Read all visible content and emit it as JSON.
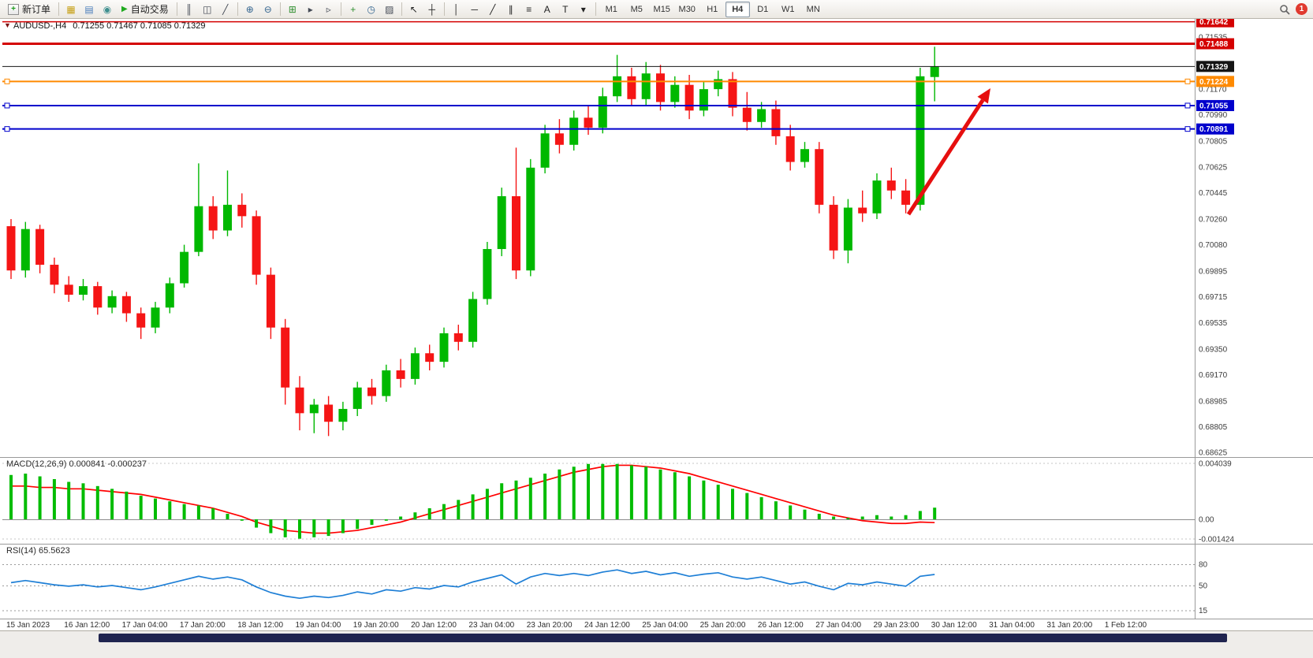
{
  "window": {
    "notification_badge": "1"
  },
  "colors": {
    "bull": "#00b800",
    "bear": "#f51515",
    "macd_histogram": "#00bc00",
    "macd_signal": "#ff0000",
    "rsi_line": "#1e7fd6",
    "arrow": "#e60f0f"
  },
  "toolbar": {
    "new_order": {
      "label": "新订单"
    },
    "autotrading": {
      "label": "自动交易"
    },
    "autotrading_icon": {
      "name": "autotrading-icon",
      "glyph": "▶",
      "color": "#1faa1f"
    },
    "icon_groups_a": [
      {
        "name": "charts-icon",
        "glyph": "▦",
        "color": "#c7a118"
      },
      {
        "name": "profiles-icon",
        "glyph": "▤",
        "color": "#4a7dbb"
      },
      {
        "name": "news-icon",
        "glyph": "◉",
        "color": "#3f8f8f"
      }
    ],
    "icon_groups_b": [
      [
        {
          "name": "bar-chart-icon",
          "glyph": "║",
          "color": "#444a55"
        },
        {
          "name": "candlestick-chart-icon",
          "glyph": "◫",
          "color": "#444a55"
        },
        {
          "name": "line-chart-icon",
          "glyph": "╱",
          "color": "#444a55"
        }
      ],
      [
        {
          "name": "zoom-in-icon",
          "glyph": "⊕",
          "color": "#33648f"
        },
        {
          "name": "zoom-out-icon",
          "glyph": "⊖",
          "color": "#33648f"
        }
      ],
      [
        {
          "name": "tile-windows-icon",
          "glyph": "⊞",
          "color": "#2f8f2f"
        },
        {
          "name": "auto-scroll-icon",
          "glyph": "▸",
          "color": "#444a55"
        },
        {
          "name": "chart-shift-icon",
          "glyph": "▹",
          "color": "#444a55"
        }
      ],
      [
        {
          "name": "add-indicator-icon",
          "glyph": "+",
          "color": "#2f8f2f"
        },
        {
          "name": "periods-icon",
          "glyph": "◷",
          "color": "#33648f"
        },
        {
          "name": "templates-icon",
          "glyph": "▨",
          "color": "#444a55"
        }
      ],
      [
        {
          "name": "cursor-icon",
          "glyph": "↖",
          "color": "#222222"
        },
        {
          "name": "crosshair-icon",
          "glyph": "┼",
          "color": "#222222"
        }
      ],
      [
        {
          "name": "vertical-line-icon",
          "glyph": "│",
          "color": "#222222"
        },
        {
          "name": "horizontal-line-icon",
          "glyph": "─",
          "color": "#222222"
        },
        {
          "name": "trendline-icon",
          "glyph": "╱",
          "color": "#222222"
        },
        {
          "name": "channel-icon",
          "glyph": "∥",
          "color": "#222222"
        },
        {
          "name": "fibonacci-icon",
          "glyph": "≡",
          "color": "#222222"
        },
        {
          "name": "text-icon",
          "glyph": "A",
          "color": "#222222"
        },
        {
          "name": "label-icon",
          "glyph": "T",
          "color": "#222222"
        },
        {
          "name": "shapes-icon",
          "glyph": "▾",
          "color": "#222222"
        }
      ]
    ],
    "timeframes": [
      "M1",
      "M5",
      "M15",
      "M30",
      "H1",
      "H4",
      "D1",
      "W1",
      "MN"
    ],
    "active_timeframe": "H4"
  },
  "chart": {
    "marker_glyph": "▼",
    "symbol_title": "AUDUSD-,H4",
    "ohlc_text": "0.71255 0.71467 0.71085 0.71329",
    "price_ticks": [
      "0.71535",
      "0.71170",
      "0.70990",
      "0.70805",
      "0.70625",
      "0.70445",
      "0.70260",
      "0.70080",
      "0.69895",
      "0.69715",
      "0.69535",
      "0.69350",
      "0.69170",
      "0.68985",
      "0.68805",
      "0.68625"
    ],
    "levels": [
      {
        "name": "resistance-upper",
        "price": 0.71642,
        "label": "0.71642",
        "color": "#d40000",
        "width": 1.4,
        "handles": false
      },
      {
        "name": "resistance-lower",
        "price": 0.71488,
        "label": "0.71488",
        "color": "#d40000",
        "width": 3,
        "handles": false
      },
      {
        "name": "current-price",
        "price": 0.71329,
        "label": "0.71329",
        "color": "#151515",
        "width": 1,
        "handles": false
      },
      {
        "name": "pivot-orange",
        "price": 0.71224,
        "label": "0.71224",
        "color": "#ff8a00",
        "width": 2,
        "handles": true
      },
      {
        "name": "support-upper",
        "price": 0.71055,
        "label": "0.71055",
        "color": "#0000cc",
        "width": 2,
        "handles": true
      },
      {
        "name": "support-lower",
        "price": 0.70891,
        "label": "0.70891",
        "color": "#0000cc",
        "width": 2,
        "handles": true
      }
    ],
    "time_labels": [
      "15 Jan 2023",
      "16 Jan 12:00",
      "17 Jan 04:00",
      "17 Jan 20:00",
      "18 Jan 12:00",
      "19 Jan 04:00",
      "19 Jan 20:00",
      "20 Jan 12:00",
      "23 Jan 04:00",
      "23 Jan 20:00",
      "24 Jan 12:00",
      "25 Jan 04:00",
      "25 Jan 20:00",
      "26 Jan 12:00",
      "27 Jan 04:00",
      "29 Jan 23:00",
      "30 Jan 12:00",
      "31 Jan 04:00",
      "31 Jan 20:00",
      "1 Feb 12:00"
    ]
  },
  "macd": {
    "label": "MACD(12,26,9) 0.000841 -0.000237",
    "ticks": [
      {
        "label": "0.004039",
        "value": 0.004039
      },
      {
        "label": "0.00",
        "value": 0
      },
      {
        "label": "-0.001424",
        "value": -0.001424
      }
    ]
  },
  "rsi": {
    "label": "RSI(14) 65.5623",
    "ticks": [
      {
        "label": "80",
        "value": 80
      },
      {
        "label": "50",
        "value": 50
      },
      {
        "label": "15",
        "value": 15
      }
    ]
  },
  "chart_data": {
    "type": "candlestick",
    "symbol": "AUDUSD",
    "timeframe": "H4",
    "current_bar": {
      "open": 0.71255,
      "high": 0.71467,
      "low": 0.71085,
      "close": 0.71329
    },
    "candles": [
      [
        0.7021,
        0.7026,
        0.6984,
        0.699
      ],
      [
        0.699,
        0.7024,
        0.6985,
        0.7019
      ],
      [
        0.7019,
        0.7022,
        0.6988,
        0.6994
      ],
      [
        0.6994,
        0.6999,
        0.6974,
        0.698
      ],
      [
        0.698,
        0.6986,
        0.6968,
        0.6973
      ],
      [
        0.6973,
        0.6984,
        0.6969,
        0.6979
      ],
      [
        0.6979,
        0.6982,
        0.6959,
        0.6964
      ],
      [
        0.6964,
        0.6976,
        0.696,
        0.6972
      ],
      [
        0.6972,
        0.6975,
        0.6954,
        0.696
      ],
      [
        0.696,
        0.6964,
        0.6942,
        0.695
      ],
      [
        0.695,
        0.6968,
        0.6946,
        0.6964
      ],
      [
        0.6964,
        0.6985,
        0.696,
        0.6981
      ],
      [
        0.6981,
        0.7008,
        0.6978,
        0.7003
      ],
      [
        0.7003,
        0.7065,
        0.7,
        0.7035
      ],
      [
        0.7035,
        0.7042,
        0.7012,
        0.7018
      ],
      [
        0.7018,
        0.706,
        0.7014,
        0.7036
      ],
      [
        0.7036,
        0.7044,
        0.702,
        0.7028
      ],
      [
        0.7028,
        0.7032,
        0.698,
        0.6987
      ],
      [
        0.6987,
        0.6992,
        0.6942,
        0.695
      ],
      [
        0.695,
        0.6956,
        0.6896,
        0.6908
      ],
      [
        0.6908,
        0.6916,
        0.6878,
        0.689
      ],
      [
        0.689,
        0.69,
        0.6876,
        0.6896
      ],
      [
        0.6896,
        0.6902,
        0.6874,
        0.6884
      ],
      [
        0.6884,
        0.6898,
        0.6878,
        0.6893
      ],
      [
        0.6893,
        0.6912,
        0.6888,
        0.6908
      ],
      [
        0.6908,
        0.6914,
        0.6896,
        0.6902
      ],
      [
        0.6902,
        0.6924,
        0.6898,
        0.692
      ],
      [
        0.692,
        0.6928,
        0.6908,
        0.6914
      ],
      [
        0.6914,
        0.6936,
        0.691,
        0.6932
      ],
      [
        0.6932,
        0.6938,
        0.692,
        0.6926
      ],
      [
        0.6926,
        0.695,
        0.6922,
        0.6946
      ],
      [
        0.6946,
        0.6952,
        0.6934,
        0.694
      ],
      [
        0.694,
        0.6975,
        0.6936,
        0.697
      ],
      [
        0.697,
        0.701,
        0.6966,
        0.7005
      ],
      [
        0.7005,
        0.7048,
        0.7,
        0.7042
      ],
      [
        0.7042,
        0.7076,
        0.6984,
        0.699
      ],
      [
        0.699,
        0.7068,
        0.6986,
        0.7062
      ],
      [
        0.7062,
        0.7092,
        0.7058,
        0.7086
      ],
      [
        0.7086,
        0.7096,
        0.7072,
        0.7078
      ],
      [
        0.7078,
        0.7102,
        0.7074,
        0.7097
      ],
      [
        0.7097,
        0.7105,
        0.7085,
        0.709
      ],
      [
        0.709,
        0.7118,
        0.7086,
        0.7112
      ],
      [
        0.7112,
        0.7141,
        0.7108,
        0.7126
      ],
      [
        0.7126,
        0.7132,
        0.7105,
        0.711
      ],
      [
        0.711,
        0.7136,
        0.7106,
        0.7128
      ],
      [
        0.7128,
        0.7134,
        0.7102,
        0.7108
      ],
      [
        0.7108,
        0.7126,
        0.7104,
        0.712
      ],
      [
        0.712,
        0.7127,
        0.7096,
        0.7102
      ],
      [
        0.7102,
        0.7122,
        0.7098,
        0.7117
      ],
      [
        0.7117,
        0.713,
        0.7112,
        0.7124
      ],
      [
        0.7124,
        0.7129,
        0.7098,
        0.7104
      ],
      [
        0.7104,
        0.7115,
        0.7088,
        0.7094
      ],
      [
        0.7094,
        0.7108,
        0.709,
        0.7103
      ],
      [
        0.7103,
        0.7109,
        0.7078,
        0.7084
      ],
      [
        0.7084,
        0.7092,
        0.706,
        0.7066
      ],
      [
        0.7066,
        0.708,
        0.7062,
        0.7075
      ],
      [
        0.7075,
        0.708,
        0.703,
        0.7036
      ],
      [
        0.7036,
        0.7042,
        0.6998,
        0.7004
      ],
      [
        0.7004,
        0.704,
        0.6995,
        0.7034
      ],
      [
        0.7034,
        0.7046,
        0.7024,
        0.703
      ],
      [
        0.703,
        0.7058,
        0.7026,
        0.7053
      ],
      [
        0.7053,
        0.7062,
        0.704,
        0.7046
      ],
      [
        0.7046,
        0.7054,
        0.703,
        0.7036
      ],
      [
        0.7036,
        0.7132,
        0.7032,
        0.7126
      ],
      [
        0.71255,
        0.71467,
        0.71085,
        0.71329
      ]
    ],
    "macd_histogram": [
      0.0032,
      0.0033,
      0.0031,
      0.0029,
      0.0027,
      0.0026,
      0.0024,
      0.0022,
      0.002,
      0.0017,
      0.0015,
      0.0013,
      0.0011,
      0.001,
      0.0008,
      0.0004,
      -0.0001,
      -0.0006,
      -0.001,
      -0.0013,
      -0.0014,
      -0.0013,
      -0.0012,
      -0.001,
      -0.0007,
      -0.0004,
      -0.0001,
      0.0002,
      0.0005,
      0.0008,
      0.0011,
      0.0014,
      0.0018,
      0.0022,
      0.0026,
      0.0028,
      0.003,
      0.0033,
      0.0036,
      0.0038,
      0.004,
      0.004,
      0.004,
      0.0039,
      0.0038,
      0.0036,
      0.0034,
      0.0031,
      0.0028,
      0.0025,
      0.0022,
      0.0019,
      0.0016,
      0.0013,
      0.001,
      0.0007,
      0.0004,
      0.0002,
      0.0001,
      0.0002,
      0.0003,
      0.0002,
      0.0003,
      0.0006,
      0.000841
    ],
    "macd_signal": [
      0.0024,
      0.0024,
      0.0023,
      0.0023,
      0.0022,
      0.0022,
      0.0021,
      0.002,
      0.0019,
      0.0018,
      0.0016,
      0.0014,
      0.0012,
      0.001,
      0.0008,
      0.0005,
      0.0002,
      -0.0002,
      -0.0005,
      -0.0008,
      -0.0009,
      -0.001,
      -0.001,
      -0.0009,
      -0.0008,
      -0.0006,
      -0.0004,
      -0.0002,
      0.0001,
      0.0004,
      0.0007,
      0.001,
      0.0013,
      0.0016,
      0.0019,
      0.0022,
      0.0025,
      0.0028,
      0.0031,
      0.0034,
      0.0036,
      0.0038,
      0.0039,
      0.0039,
      0.0038,
      0.0037,
      0.0035,
      0.0033,
      0.003,
      0.0027,
      0.0024,
      0.0021,
      0.0018,
      0.0015,
      0.0012,
      0.0009,
      0.0006,
      0.0003,
      0.0001,
      -0.0001,
      -0.0002,
      -0.0003,
      -0.0003,
      -0.0002,
      -0.000237
    ],
    "rsi_values": [
      54,
      57,
      54,
      51,
      49,
      51,
      48,
      50,
      47,
      44,
      48,
      53,
      58,
      63,
      59,
      62,
      58,
      48,
      40,
      35,
      32,
      35,
      33,
      36,
      41,
      38,
      44,
      42,
      47,
      45,
      50,
      48,
      55,
      60,
      65,
      52,
      62,
      67,
      64,
      67,
      64,
      69,
      72,
      67,
      70,
      65,
      68,
      63,
      66,
      68,
      62,
      59,
      62,
      57,
      52,
      55,
      49,
      44,
      53,
      51,
      55,
      52,
      49,
      63,
      65.5623
    ],
    "annotations": [
      {
        "type": "arrow",
        "from": [
          1152,
          272
        ],
        "to": [
          1256,
          112
        ],
        "color": "#e60f0f"
      }
    ]
  }
}
